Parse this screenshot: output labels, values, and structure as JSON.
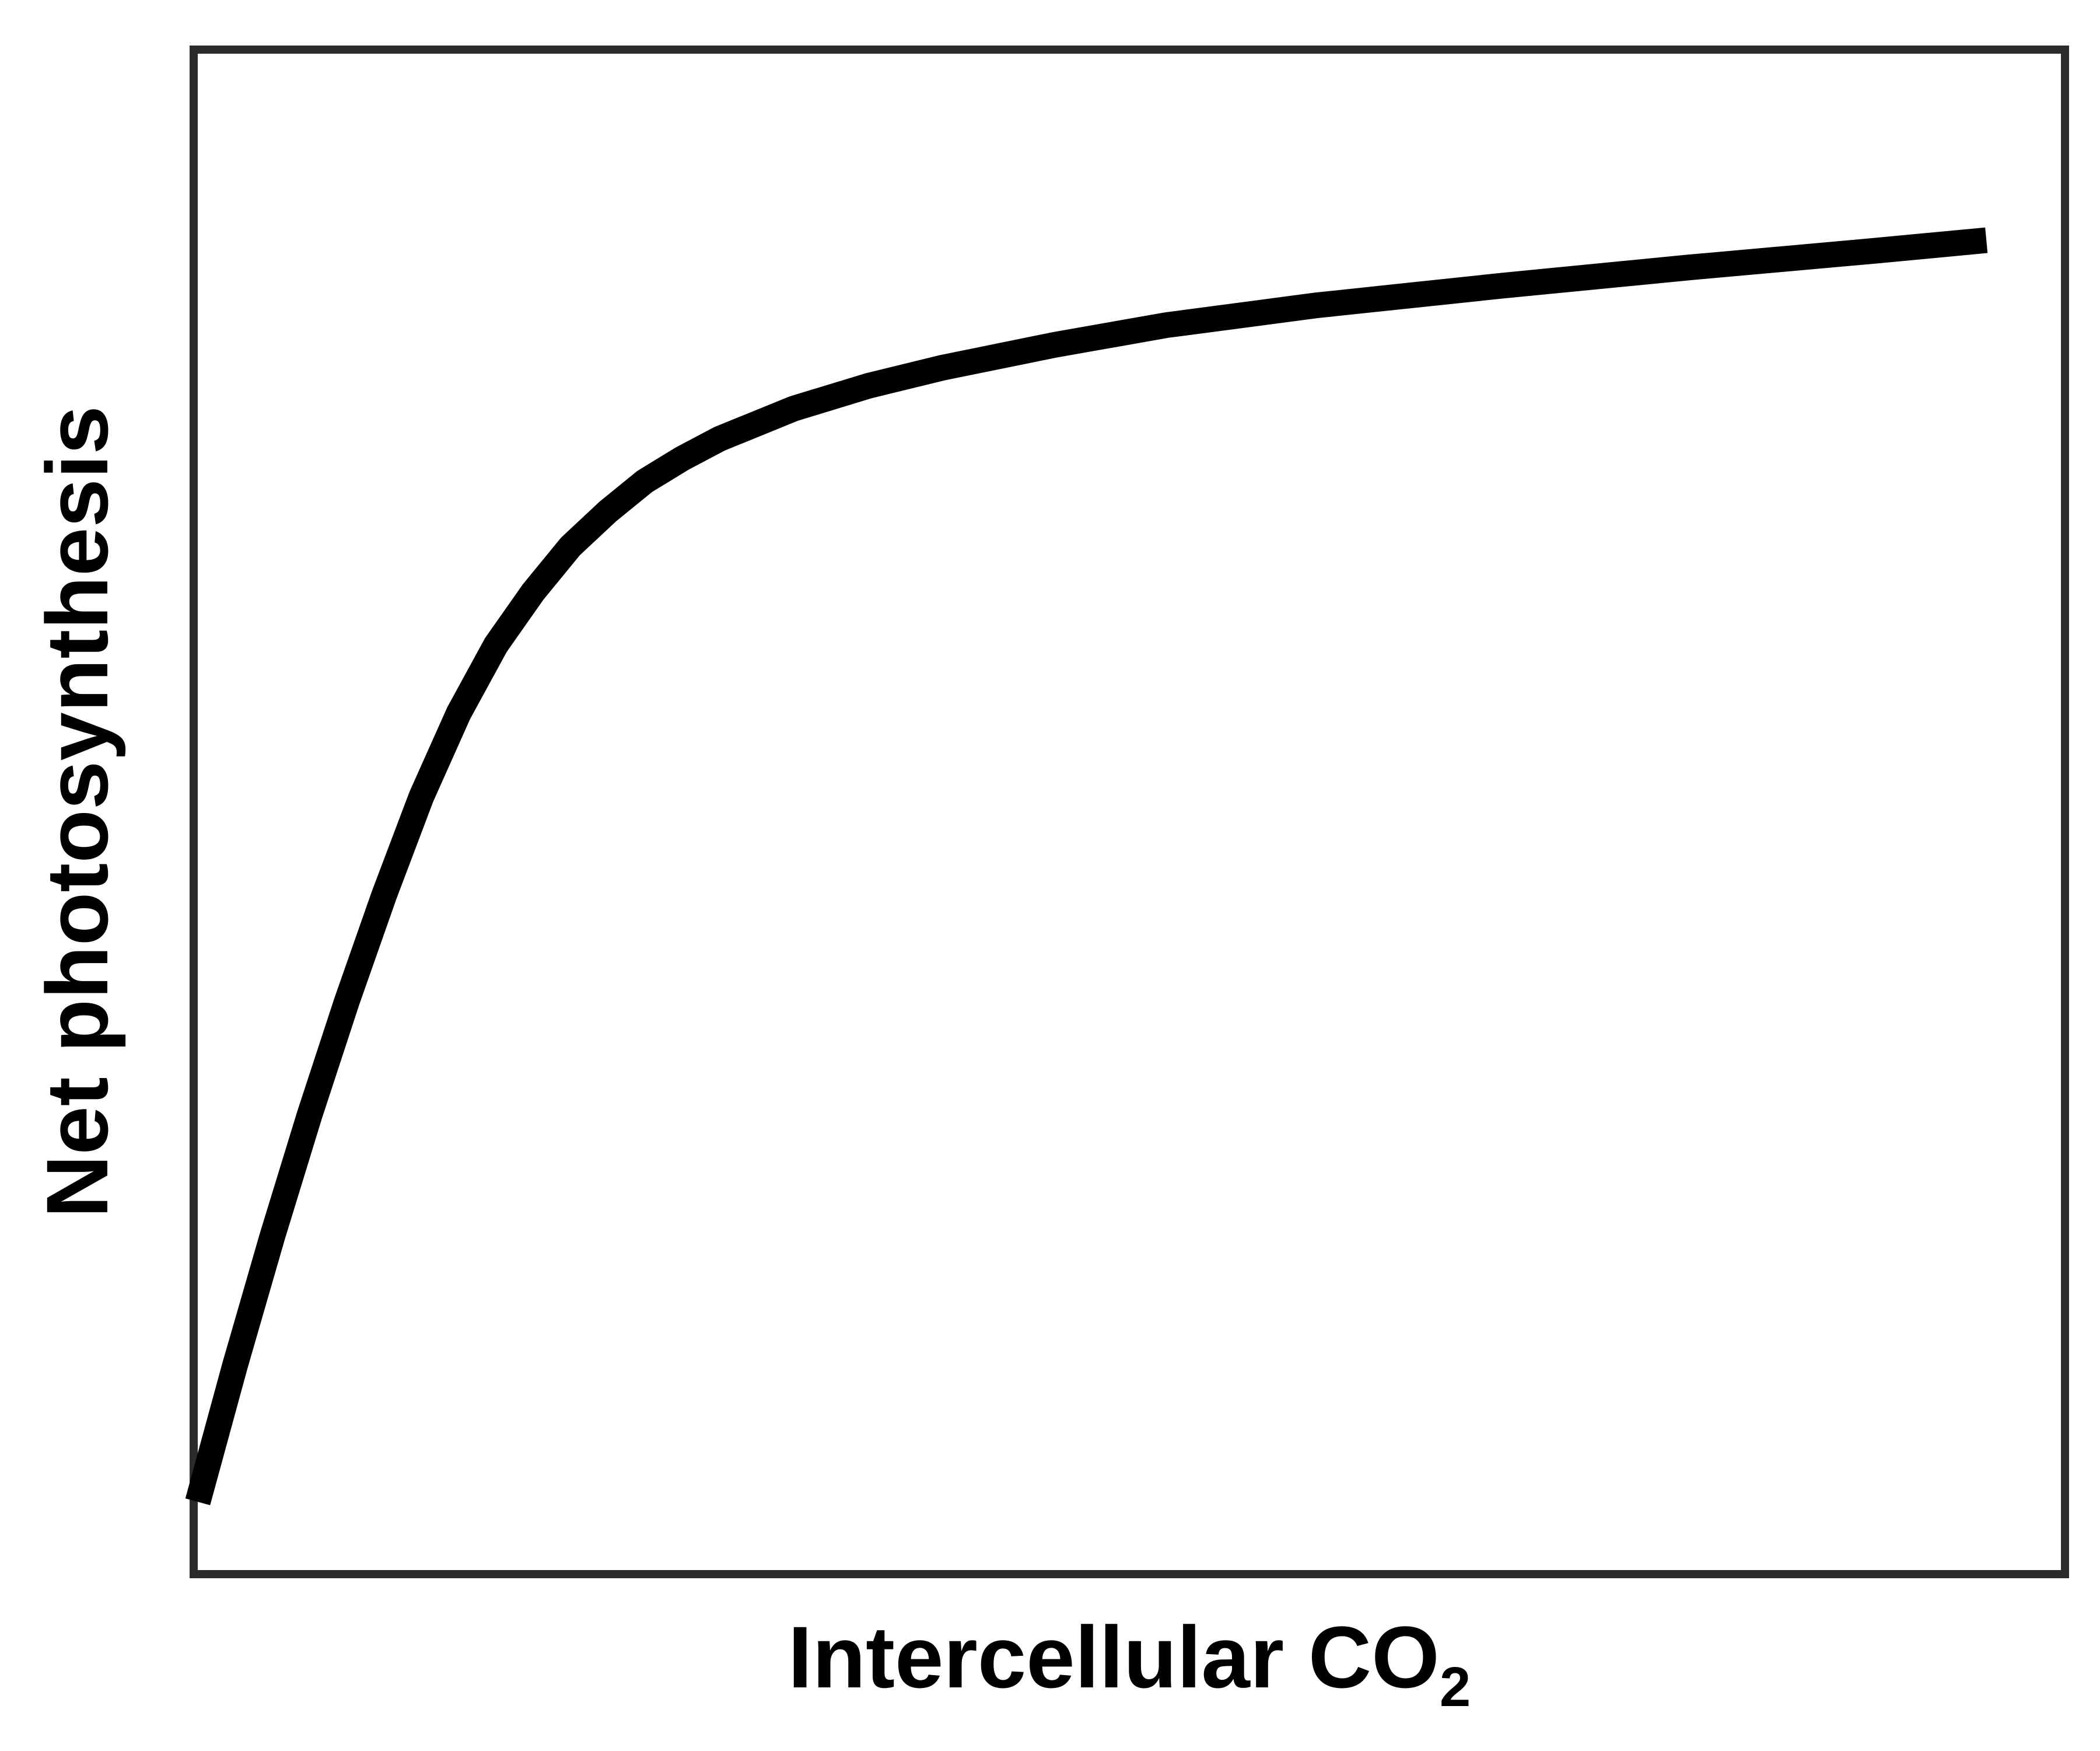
{
  "chart_data": {
    "type": "line",
    "title": "",
    "xlabel": "Intercellular CO",
    "xlabel_subscript": "2",
    "ylabel": "Net photosynthesis",
    "grid": false,
    "legend": "none",
    "xlim": [
      0,
      100
    ],
    "ylim": [
      0,
      100
    ],
    "series": [
      {
        "color": "#000000",
        "x": [
          0,
          2,
          4,
          6,
          8,
          10,
          12,
          14,
          16,
          18,
          20,
          22,
          24,
          26,
          28,
          32,
          36,
          40,
          46,
          52,
          60,
          70,
          80,
          90,
          96
        ],
        "y": [
          4.5,
          13.5,
          22,
          30,
          37.5,
          44.5,
          51,
          56.5,
          61,
          64.5,
          67.5,
          69.8,
          71.8,
          73.3,
          74.6,
          76.6,
          78.1,
          79.3,
          80.8,
          82.1,
          83.4,
          84.7,
          85.9,
          87.0,
          87.7
        ]
      }
    ]
  }
}
